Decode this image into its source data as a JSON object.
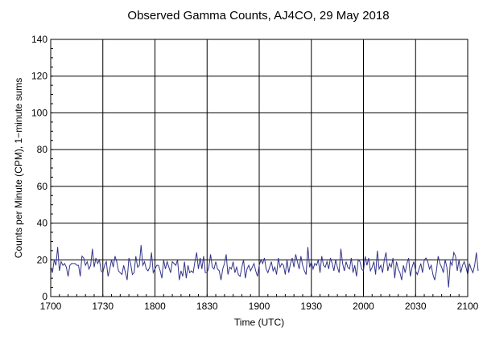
{
  "chart_data": {
    "type": "line",
    "title": "Observed Gamma Counts, AJ4CO, 29 May 2018",
    "xlabel": "Time (UTC)",
    "ylabel": "Counts per Minute (CPM), 1−minute sums",
    "x_range_minutes": [
      0,
      240
    ],
    "x_ticks": [
      "1700",
      "1730",
      "1800",
      "1830",
      "1900",
      "1930",
      "2000",
      "2030",
      "2100"
    ],
    "ylim": [
      0,
      140
    ],
    "y_ticks": [
      "0",
      "20",
      "40",
      "60",
      "80",
      "100",
      "120",
      "140"
    ],
    "grid": true,
    "series_color": "#33338a",
    "series": [
      {
        "x_start": "1700",
        "x_step_minutes": 1,
        "values": [
          16,
          13,
          20,
          17,
          27,
          14,
          19,
          17,
          18,
          16,
          11,
          17,
          18,
          18,
          18,
          17,
          17,
          11,
          22,
          21,
          17,
          19,
          15,
          17,
          26,
          16,
          21,
          18,
          20,
          14,
          13,
          17,
          19,
          11,
          15,
          20,
          16,
          22,
          19,
          14,
          13,
          12,
          17,
          13,
          9,
          21,
          18,
          12,
          13,
          22,
          16,
          17,
          28,
          17,
          19,
          15,
          14,
          16,
          24,
          13,
          15,
          17,
          17,
          14,
          10,
          20,
          15,
          19,
          16,
          13,
          19,
          18,
          17,
          20,
          9,
          14,
          11,
          19,
          10,
          17,
          13,
          14,
          13,
          19,
          24,
          15,
          21,
          15,
          22,
          13,
          13,
          16,
          23,
          16,
          15,
          19,
          15,
          14,
          9,
          15,
          18,
          23,
          12,
          16,
          15,
          19,
          13,
          16,
          12,
          11,
          16,
          20,
          10,
          15,
          17,
          14,
          16,
          18,
          14,
          11,
          17,
          20,
          18,
          21,
          15,
          13,
          16,
          19,
          14,
          16,
          12,
          21,
          16,
          18,
          17,
          12,
          20,
          13,
          18,
          21,
          16,
          23,
          19,
          15,
          22,
          17,
          14,
          12,
          27,
          16,
          19,
          15,
          18,
          17,
          20,
          13,
          22,
          17,
          16,
          19,
          15,
          21,
          18,
          14,
          20,
          16,
          13,
          26,
          18,
          14,
          19,
          16,
          15,
          21,
          13,
          17,
          11,
          20,
          19,
          15,
          14,
          22,
          17,
          21,
          14,
          16,
          19,
          12,
          25,
          15,
          17,
          13,
          20,
          24,
          14,
          18,
          16,
          21,
          10,
          19,
          15,
          13,
          9,
          17,
          13,
          18,
          21,
          11,
          16,
          19,
          14,
          12,
          15,
          18,
          13,
          20,
          21,
          19,
          15,
          17,
          12,
          9,
          14,
          22,
          18,
          16,
          13,
          20,
          16,
          5,
          19,
          17,
          24,
          22,
          14,
          20,
          13,
          17,
          19,
          16,
          12,
          18,
          15,
          13,
          17,
          24,
          14
        ]
      }
    ]
  }
}
